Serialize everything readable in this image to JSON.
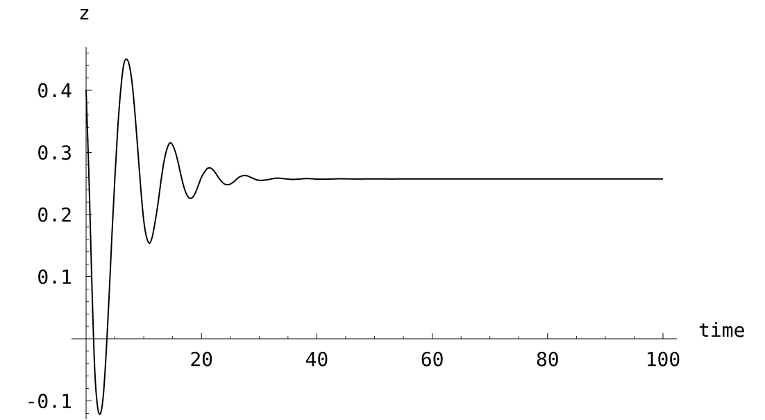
{
  "chart_data": {
    "type": "line",
    "title": "",
    "xlabel": "time",
    "ylabel": "z",
    "xlim": [
      0,
      100
    ],
    "ylim": [
      -0.13,
      0.47
    ],
    "x_ticks": [
      20,
      40,
      60,
      80,
      100
    ],
    "x_tick_labels": [
      "20",
      "40",
      "60",
      "80",
      "100"
    ],
    "y_ticks": [
      -0.1,
      0.1,
      0.2,
      0.3,
      0.4
    ],
    "y_tick_labels": [
      "-0.1",
      "0.1",
      "0.2",
      "0.3",
      "0.4"
    ],
    "grid": false,
    "series": [
      {
        "x": [
          0,
          0.5,
          1,
          1.5,
          2,
          2.5,
          3,
          3.5,
          4,
          4.5,
          5,
          5.5,
          6,
          6.5,
          7,
          7.5,
          8,
          8.5,
          9,
          9.5,
          10,
          10.5,
          11,
          11.5,
          12,
          12.5,
          13,
          13.5,
          14,
          14.5,
          15,
          15.5,
          16,
          16.5,
          17,
          17.5,
          18,
          18.5,
          19,
          19.5,
          20,
          20.5,
          21,
          21.5,
          22,
          22.5,
          23,
          23.5,
          24,
          24.5,
          25,
          25.5,
          26,
          26.5,
          27,
          27.5,
          28,
          28.5,
          29,
          29.5,
          30,
          30.5,
          31,
          31.5,
          32,
          32.5,
          33,
          33.5,
          34,
          34.5,
          35,
          35.5,
          36,
          36.5,
          37,
          37.5,
          38,
          38.5,
          39,
          39.5,
          40,
          41,
          42,
          43,
          44,
          45,
          46,
          47,
          48,
          49,
          50,
          52,
          54,
          56,
          58,
          60,
          65,
          70,
          75,
          80,
          85,
          90,
          95,
          100
        ],
        "y": [
          0.4,
          0.26,
          0.09,
          -0.05,
          -0.11,
          -0.12,
          -0.09,
          -0.02,
          0.07,
          0.17,
          0.26,
          0.34,
          0.4,
          0.44,
          0.45,
          0.44,
          0.41,
          0.36,
          0.3,
          0.24,
          0.19,
          0.163,
          0.154,
          0.165,
          0.19,
          0.22,
          0.255,
          0.285,
          0.305,
          0.315,
          0.312,
          0.3,
          0.282,
          0.261,
          0.243,
          0.231,
          0.226,
          0.228,
          0.236,
          0.248,
          0.26,
          0.268,
          0.274,
          0.275,
          0.272,
          0.266,
          0.259,
          0.253,
          0.249,
          0.248,
          0.249,
          0.252,
          0.256,
          0.26,
          0.262,
          0.263,
          0.262,
          0.26,
          0.258,
          0.256,
          0.255,
          0.255,
          0.2555,
          0.256,
          0.257,
          0.258,
          0.2585,
          0.2585,
          0.258,
          0.2575,
          0.257,
          0.2565,
          0.2565,
          0.2568,
          0.257,
          0.2575,
          0.2578,
          0.2578,
          0.2575,
          0.2572,
          0.257,
          0.2568,
          0.257,
          0.2573,
          0.2575,
          0.2574,
          0.2572,
          0.2571,
          0.2572,
          0.2573,
          0.2573,
          0.2572,
          0.2572,
          0.2572,
          0.2572,
          0.2572,
          0.2572,
          0.2572,
          0.2572,
          0.2572,
          0.2572,
          0.2572,
          0.2572,
          0.2572
        ]
      }
    ]
  }
}
